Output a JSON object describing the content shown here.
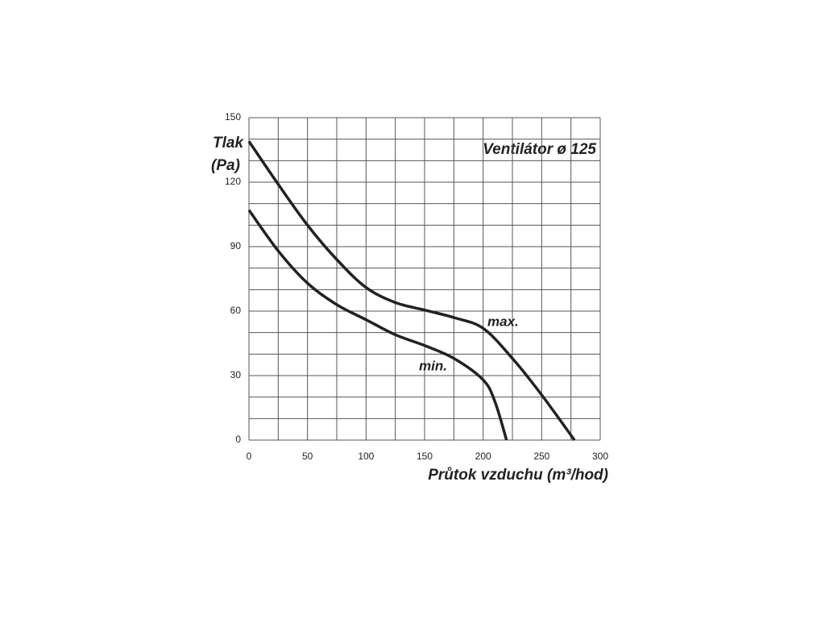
{
  "chart_data": {
    "type": "line",
    "title": "Ventilátor ø 125",
    "ylabel": [
      "Tlak",
      "(Pa)"
    ],
    "xlabel": "Průtok vzduchu (m³/hod)",
    "xlim": [
      0,
      300
    ],
    "ylim": [
      0,
      150
    ],
    "xticks": [
      0,
      50,
      100,
      150,
      200,
      250,
      300
    ],
    "yticks": [
      0,
      30,
      60,
      90,
      120,
      150
    ],
    "x_gridlines": [
      0,
      25,
      50,
      75,
      100,
      125,
      150,
      175,
      200,
      225,
      250,
      275,
      300
    ],
    "y_gridlines": [
      0,
      10,
      20,
      30,
      40,
      50,
      60,
      70,
      80,
      90,
      100,
      110,
      120,
      130,
      140,
      150
    ],
    "grid": true,
    "series": [
      {
        "name": "max.",
        "color": "#222222",
        "x": [
          0,
          25,
          50,
          75,
          100,
          125,
          150,
          175,
          200,
          225,
          250,
          278
        ],
        "values": [
          139,
          119,
          100,
          84,
          71,
          64,
          60.5,
          57,
          52,
          38,
          21,
          0
        ]
      },
      {
        "name": "min.",
        "color": "#222222",
        "x": [
          0,
          25,
          50,
          75,
          100,
          125,
          150,
          175,
          200,
          210,
          220
        ],
        "values": [
          107,
          88,
          73,
          63,
          56,
          49,
          44,
          38,
          28,
          18,
          0
        ]
      }
    ]
  }
}
